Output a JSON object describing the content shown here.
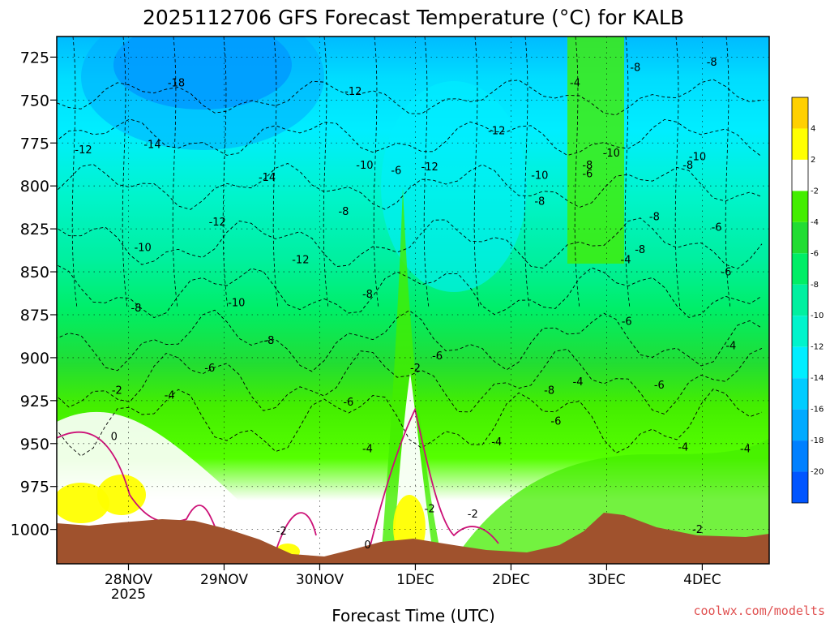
{
  "chart_data": {
    "type": "heatmap",
    "title": "2025112706 GFS Forecast Temperature (°C) for KALB",
    "xlabel": "Forecast Time (UTC)",
    "ylabel": "",
    "credit": "coolwx.com/modelts",
    "y_axis": {
      "ticks": [
        725,
        750,
        775,
        800,
        825,
        850,
        875,
        900,
        925,
        950,
        975,
        1000
      ],
      "ylim": [
        1020,
        713
      ]
    },
    "x_axis": {
      "xlim": [
        0,
        7.45
      ],
      "ticks": [
        {
          "label": "28NOV",
          "sub": "2025",
          "t": 0.75
        },
        {
          "label": "29NOV",
          "sub": "",
          "t": 1.75
        },
        {
          "label": "30NOV",
          "sub": "",
          "t": 2.75
        },
        {
          "label": "1DEC",
          "sub": "",
          "t": 3.75
        },
        {
          "label": "2DEC",
          "sub": "",
          "t": 4.75
        },
        {
          "label": "3DEC",
          "sub": "",
          "t": 5.75
        },
        {
          "label": "4DEC",
          "sub": "",
          "t": 6.75
        }
      ]
    },
    "grid": true,
    "legend": {
      "placement": "right",
      "labels": [
        "4",
        "2",
        "-2",
        "-4",
        "-6",
        "-8",
        "-10",
        "-12",
        "-14",
        "-16",
        "-18",
        "-20"
      ],
      "colors": [
        "#ffd000",
        "#ffff00",
        "#ffffff",
        "#44ee00",
        "#22dd33",
        "#00ee66",
        "#00f0a0",
        "#00f4cc",
        "#00eeff",
        "#00ccff",
        "#00aaff",
        "#0080ff",
        "#0055ff"
      ]
    },
    "freezing_line_color": "#cc1177",
    "terrain_color": "#a0522d",
    "contour_labels": [
      {
        "text": "-18",
        "t": 1.25,
        "p": 742
      },
      {
        "text": "-14",
        "t": 1.0,
        "p": 778
      },
      {
        "text": "-14",
        "t": 2.2,
        "p": 797
      },
      {
        "text": "-12",
        "t": 0.28,
        "p": 781
      },
      {
        "text": "-12",
        "t": 3.1,
        "p": 747
      },
      {
        "text": "-12",
        "t": 3.9,
        "p": 791
      },
      {
        "text": "-12",
        "t": 4.6,
        "p": 770
      },
      {
        "text": "-12",
        "t": 1.68,
        "p": 823
      },
      {
        "text": "-12",
        "t": 2.55,
        "p": 845
      },
      {
        "text": "-10",
        "t": 0.9,
        "p": 838
      },
      {
        "text": "-10",
        "t": 3.22,
        "p": 790
      },
      {
        "text": "-10",
        "t": 1.88,
        "p": 870
      },
      {
        "text": "-10",
        "t": 5.05,
        "p": 796
      },
      {
        "text": "-10",
        "t": 5.8,
        "p": 783
      },
      {
        "text": "-10",
        "t": 6.7,
        "p": 785
      },
      {
        "text": "-8",
        "t": 0.83,
        "p": 873
      },
      {
        "text": "-8",
        "t": 2.22,
        "p": 892
      },
      {
        "text": "-8",
        "t": 3.0,
        "p": 817
      },
      {
        "text": "-8",
        "t": 3.25,
        "p": 865
      },
      {
        "text": "-8",
        "t": 5.05,
        "p": 811
      },
      {
        "text": "-8",
        "t": 5.55,
        "p": 790
      },
      {
        "text": "-8",
        "t": 6.25,
        "p": 820
      },
      {
        "text": "-8",
        "t": 6.6,
        "p": 790
      },
      {
        "text": "-8",
        "t": 6.85,
        "p": 730
      },
      {
        "text": "-8",
        "t": 6.05,
        "p": 733
      },
      {
        "text": "-8",
        "t": 5.15,
        "p": 921
      },
      {
        "text": "-8",
        "t": 6.1,
        "p": 839
      },
      {
        "text": "-6",
        "t": 1.6,
        "p": 908
      },
      {
        "text": "-6",
        "t": 3.55,
        "p": 793
      },
      {
        "text": "-6",
        "t": 3.05,
        "p": 928
      },
      {
        "text": "-6",
        "t": 3.98,
        "p": 901
      },
      {
        "text": "-6",
        "t": 5.22,
        "p": 939
      },
      {
        "text": "-6",
        "t": 5.55,
        "p": 795
      },
      {
        "text": "-6",
        "t": 5.96,
        "p": 881
      },
      {
        "text": "-6",
        "t": 6.3,
        "p": 918
      },
      {
        "text": "-6",
        "t": 7.0,
        "p": 852
      },
      {
        "text": "-6",
        "t": 6.9,
        "p": 826
      },
      {
        "text": "-4",
        "t": 1.18,
        "p": 924
      },
      {
        "text": "-4",
        "t": 3.25,
        "p": 955
      },
      {
        "text": "-4",
        "t": 4.6,
        "p": 951
      },
      {
        "text": "-4",
        "t": 5.45,
        "p": 916
      },
      {
        "text": "-4",
        "t": 5.95,
        "p": 845
      },
      {
        "text": "-4",
        "t": 5.42,
        "p": 742
      },
      {
        "text": "-4",
        "t": 6.55,
        "p": 954
      },
      {
        "text": "-4",
        "t": 7.2,
        "p": 955
      },
      {
        "text": "-4",
        "t": 7.05,
        "p": 895
      },
      {
        "text": "-2",
        "t": 0.63,
        "p": 921
      },
      {
        "text": "-2",
        "t": 2.35,
        "p": 1003
      },
      {
        "text": "-2",
        "t": 3.75,
        "p": 908
      },
      {
        "text": "-2",
        "t": 4.35,
        "p": 993
      },
      {
        "text": "-2",
        "t": 6.7,
        "p": 1002
      },
      {
        "text": "-2",
        "t": 3.9,
        "p": 990
      },
      {
        "text": "0",
        "t": 0.6,
        "p": 948
      },
      {
        "text": "0",
        "t": 3.25,
        "p": 1011
      }
    ]
  }
}
